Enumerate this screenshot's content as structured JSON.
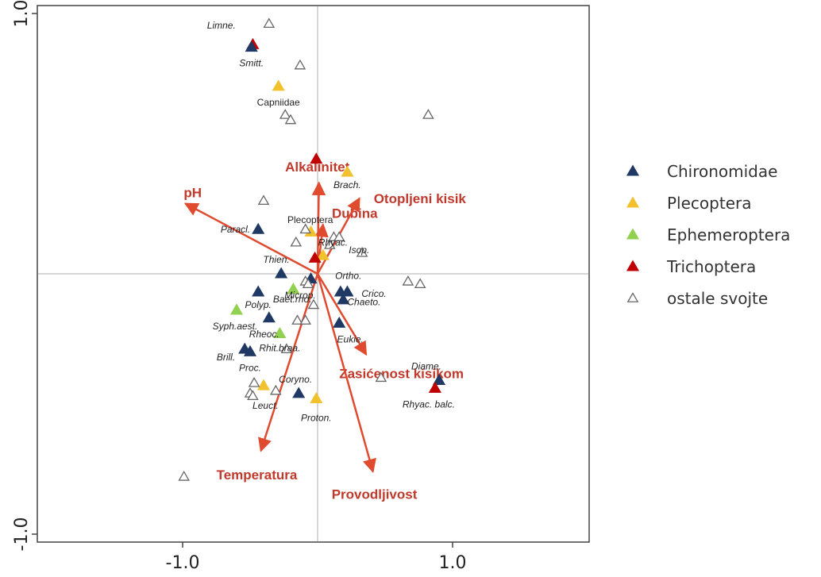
{
  "chart_data": {
    "type": "scatter",
    "title": "",
    "xlabel": "",
    "ylabel": "",
    "xlim": [
      -1.05,
      1.02
    ],
    "ylim": [
      -1.05,
      1.02
    ],
    "x_ticks": [
      {
        "value": -1.0,
        "label": "-1.0"
      },
      {
        "value": 1.0,
        "label": "1.0"
      }
    ],
    "y_ticks": [
      {
        "value": -1.0,
        "label": "-1.0"
      },
      {
        "value": 1.0,
        "label": "1.0"
      }
    ],
    "zero_lines": true,
    "legend_position": "right",
    "groups": [
      {
        "key": "chir",
        "name": "Chironomidae",
        "color": "#1f3864",
        "marker": "filled-triangle"
      },
      {
        "key": "plec",
        "name": "Plecoptera",
        "color": "#f2c12e",
        "marker": "filled-triangle"
      },
      {
        "key": "ephe",
        "name": "Ephemeroptera",
        "color": "#92d050",
        "marker": "filled-triangle"
      },
      {
        "key": "tric",
        "name": "Trichoptera",
        "color": "#c00000",
        "marker": "filled-triangle"
      },
      {
        "key": "other",
        "name": "ostale svojte",
        "color": "#666666",
        "marker": "open-triangle"
      }
    ],
    "points": [
      {
        "group": "tric",
        "x": -0.48,
        "y": 0.88,
        "label": ""
      },
      {
        "group": "chir",
        "x": -0.49,
        "y": 0.87,
        "label": "Smitt."
      },
      {
        "group": "plec",
        "x": -0.29,
        "y": 0.72,
        "label": "Capniidae"
      },
      {
        "group": "tric",
        "x": -0.01,
        "y": 0.44,
        "label": ""
      },
      {
        "group": "plec",
        "x": 0.22,
        "y": 0.39,
        "label": "Brach."
      },
      {
        "group": "chir",
        "x": -0.44,
        "y": 0.17,
        "label": "Paracl."
      },
      {
        "group": "plec",
        "x": -0.05,
        "y": 0.16,
        "label": ""
      },
      {
        "group": "plec",
        "x": 0.04,
        "y": 0.07,
        "label": ""
      },
      {
        "group": "tric",
        "x": -0.02,
        "y": 0.06,
        "label": ""
      },
      {
        "group": "chir",
        "x": -0.27,
        "y": 0.0,
        "label": "Thien."
      },
      {
        "group": "chir",
        "x": -0.05,
        "y": -0.02,
        "label": ""
      },
      {
        "group": "ephe",
        "x": -0.18,
        "y": -0.06,
        "label": ""
      },
      {
        "group": "chir",
        "x": -0.44,
        "y": -0.07,
        "label": "Polyp."
      },
      {
        "group": "chir",
        "x": 0.17,
        "y": -0.07,
        "label": ""
      },
      {
        "group": "chir",
        "x": 0.22,
        "y": -0.07,
        "label": "Crico."
      },
      {
        "group": "chir",
        "x": 0.19,
        "y": -0.1,
        "label": ""
      },
      {
        "group": "ephe",
        "x": -0.6,
        "y": -0.14,
        "label": "Syph.aest."
      },
      {
        "group": "chir",
        "x": -0.36,
        "y": -0.17,
        "label": "Rheoc."
      },
      {
        "group": "ephe",
        "x": -0.28,
        "y": -0.23,
        "label": "Rhit.braa."
      },
      {
        "group": "chir",
        "x": 0.16,
        "y": -0.19,
        "label": "Eukie."
      },
      {
        "group": "chir",
        "x": -0.54,
        "y": -0.29,
        "label": "Brill."
      },
      {
        "group": "chir",
        "x": -0.5,
        "y": -0.3,
        "label": "Proc."
      },
      {
        "group": "plec",
        "x": -0.4,
        "y": -0.43,
        "label": ""
      },
      {
        "group": "chir",
        "x": -0.14,
        "y": -0.46,
        "label": "Coryno."
      },
      {
        "group": "plec",
        "x": -0.01,
        "y": -0.48,
        "label": "Proton."
      },
      {
        "group": "chir",
        "x": 0.9,
        "y": -0.41,
        "label": "Diame."
      },
      {
        "group": "tric",
        "x": 0.87,
        "y": -0.44,
        "label": "Rhyac. balc."
      },
      {
        "group": "other",
        "x": -0.36,
        "y": 0.96,
        "label": "Limne."
      },
      {
        "group": "other",
        "x": -0.13,
        "y": 0.8,
        "label": ""
      },
      {
        "group": "other",
        "x": -0.24,
        "y": 0.61,
        "label": ""
      },
      {
        "group": "other",
        "x": -0.2,
        "y": 0.59,
        "label": ""
      },
      {
        "group": "other",
        "x": 0.82,
        "y": 0.61,
        "label": ""
      },
      {
        "group": "other",
        "x": -0.4,
        "y": 0.28,
        "label": ""
      },
      {
        "group": "other",
        "x": -0.09,
        "y": 0.17,
        "label": "Plecoptera"
      },
      {
        "group": "other",
        "x": -0.16,
        "y": 0.12,
        "label": "Rhyac."
      },
      {
        "group": "other",
        "x": 0.12,
        "y": 0.14,
        "label": ""
      },
      {
        "group": "other",
        "x": 0.16,
        "y": 0.14,
        "label": ""
      },
      {
        "group": "other",
        "x": 0.09,
        "y": 0.11,
        "label": "Isop."
      },
      {
        "group": "other",
        "x": 0.33,
        "y": 0.08,
        "label": ""
      },
      {
        "group": "other",
        "x": -0.09,
        "y": -0.03,
        "label": ""
      },
      {
        "group": "other",
        "x": -0.07,
        "y": -0.04,
        "label": "Microp."
      },
      {
        "group": "other",
        "x": 0.67,
        "y": -0.03,
        "label": ""
      },
      {
        "group": "other",
        "x": 0.76,
        "y": -0.04,
        "label": ""
      },
      {
        "group": "other",
        "x": -0.03,
        "y": -0.12,
        "label": ""
      },
      {
        "group": "other",
        "x": -0.15,
        "y": -0.18,
        "label": ""
      },
      {
        "group": "other",
        "x": -0.09,
        "y": -0.18,
        "label": ""
      },
      {
        "group": "other",
        "x": -0.23,
        "y": -0.29,
        "label": ""
      },
      {
        "group": "other",
        "x": 0.47,
        "y": -0.4,
        "label": ""
      },
      {
        "group": "other",
        "x": -0.47,
        "y": -0.42,
        "label": ""
      },
      {
        "group": "other",
        "x": -0.5,
        "y": -0.46,
        "label": ""
      },
      {
        "group": "other",
        "x": -0.48,
        "y": -0.47,
        "label": "Leuct."
      },
      {
        "group": "other",
        "x": -0.31,
        "y": -0.45,
        "label": ""
      },
      {
        "group": "other",
        "x": -0.99,
        "y": -0.78,
        "label": ""
      }
    ],
    "annotations": [
      {
        "text": "Ortho.",
        "x": 0.13,
        "y": -0.02
      },
      {
        "text": "Chaeto.",
        "x": 0.22,
        "y": -0.12
      },
      {
        "text": "Baet.rho.",
        "x": -0.33,
        "y": -0.11
      }
    ],
    "vectors": [
      {
        "label": "pH",
        "x": -0.98,
        "y": 0.27
      },
      {
        "label": "Alkalinitet",
        "x": 0.01,
        "y": 0.35
      },
      {
        "label": "Dubina",
        "x": 0.04,
        "y": 0.19
      },
      {
        "label": "Otopljeni kisik",
        "x": 0.31,
        "y": 0.29
      },
      {
        "label": "Zasićenost kisikom",
        "x": 0.36,
        "y": -0.31
      },
      {
        "label": "Provodljivost",
        "x": 0.41,
        "y": -0.76
      },
      {
        "label": "Temperatura",
        "x": -0.42,
        "y": -0.68
      }
    ]
  }
}
